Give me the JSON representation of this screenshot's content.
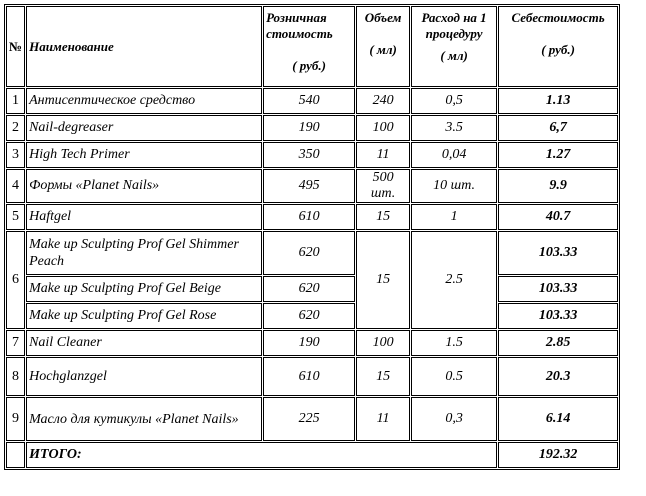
{
  "header": {
    "num": "№",
    "name": "Наименование",
    "retail_line1": "Розничная",
    "retail_line2": "стоимость",
    "retail_unit": "( руб.)",
    "volume": "Объем",
    "volume_unit": "( мл)",
    "usage_line1": "Расход на 1",
    "usage_line2": "процедуру",
    "usage_unit": "( мл)",
    "cost": "Себестоимость",
    "cost_unit": "( руб.)"
  },
  "rows": [
    {
      "num": "1",
      "name": "Антисептическое средство",
      "price": "540",
      "volume": "240",
      "usage": "0,5",
      "cost": "1.13"
    },
    {
      "num": "2",
      "name": "Nail-degreaser",
      "price": "190",
      "volume": "100",
      "usage": "3.5",
      "cost": "6,7"
    },
    {
      "num": "3",
      "name": "High Tech Primer",
      "price": "350",
      "volume": "11",
      "usage": "0,04",
      "cost": "1.27"
    },
    {
      "num": "4",
      "name": "Формы «Planet Nails»",
      "price": "495",
      "volume": "500 шт.",
      "usage": "10 шт.",
      "cost": "9.9"
    },
    {
      "num": "5",
      "name": "Haftgel",
      "price": "610",
      "volume": "15",
      "usage": "1",
      "cost": "40.7"
    }
  ],
  "group6": {
    "num": "6",
    "volume": "15",
    "usage": "2.5",
    "items": [
      {
        "name": "Make up Sculpting Prof Gel Shimmer Peach",
        "price": "620",
        "cost": "103.33"
      },
      {
        "name": "Make up Sculpting Prof Gel Beige",
        "price": "620",
        "cost": "103.33"
      },
      {
        "name": "Make up Sculpting Prof Gel Rose",
        "price": "620",
        "cost": "103.33"
      }
    ]
  },
  "rows_after": [
    {
      "num": "7",
      "name": "Nail Cleaner",
      "price": "190",
      "volume": "100",
      "usage": "1.5",
      "cost": "2.85"
    },
    {
      "num": "8",
      "name": "Hochglanzgel",
      "price": "610",
      "volume": "15",
      "usage": "0.5",
      "cost": "20.3"
    },
    {
      "num": "9",
      "name": "Масло для кутикулы «Planet Nails»",
      "price": "225",
      "volume": "11",
      "usage": "0,3",
      "cost": "6.14"
    }
  ],
  "total": {
    "label": "ИТОГО:",
    "value": "192.32"
  }
}
